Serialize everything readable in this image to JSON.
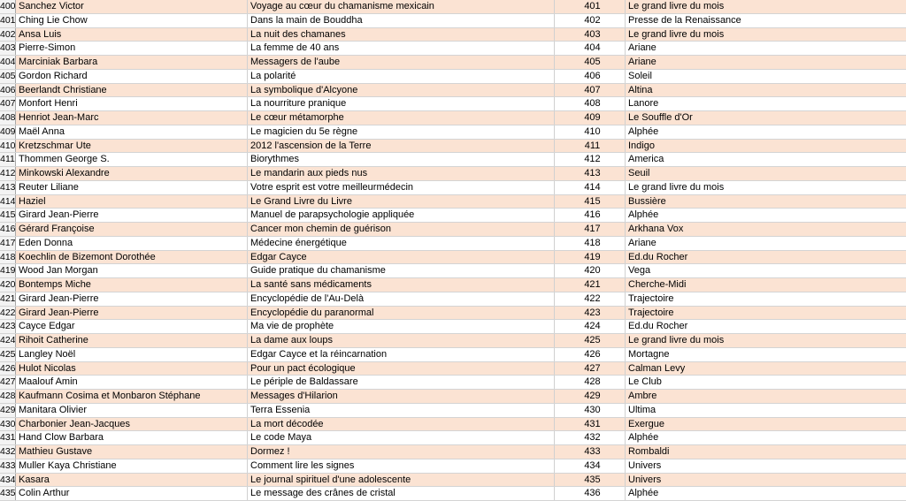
{
  "table": {
    "rows": [
      [
        400,
        "Sanchez Victor",
        "Voyage au cœur du chamanisme mexicain",
        401,
        "Le grand livre du mois"
      ],
      [
        401,
        "Ching Lie Chow",
        "Dans la main de Bouddha",
        402,
        "Presse de la Renaissance"
      ],
      [
        402,
        "Ansa Luis",
        "La nuit des chamanes",
        403,
        "Le grand livre du mois"
      ],
      [
        403,
        "Pierre-Simon",
        "La femme de 40 ans",
        404,
        "Ariane"
      ],
      [
        404,
        "Marciniak Barbara",
        "Messagers de l'aube",
        405,
        "Ariane"
      ],
      [
        405,
        "Gordon Richard",
        "La polarité",
        406,
        "Soleil"
      ],
      [
        406,
        "Beerlandt Christiane",
        "La symbolique d'Alcyone",
        407,
        "Altina"
      ],
      [
        407,
        "Monfort Henri",
        "La nourriture pranique",
        408,
        "Lanore"
      ],
      [
        408,
        "Henriot Jean-Marc",
        "Le cœur métamorphe",
        409,
        "Le Souffle d'Or"
      ],
      [
        409,
        "Maël Anna",
        "Le magicien du 5e règne",
        410,
        "Alphée"
      ],
      [
        410,
        "Kretzschmar Ute",
        "2012 l'ascension de la Terre",
        411,
        "Indigo"
      ],
      [
        411,
        "Thommen George S.",
        "Biorythmes",
        412,
        "America"
      ],
      [
        412,
        "Minkowski Alexandre",
        "Le mandarin aux pieds nus",
        413,
        "Seuil"
      ],
      [
        413,
        "Reuter Liliane",
        "Votre esprit est votre meilleurmédecin",
        414,
        "Le grand livre du mois"
      ],
      [
        414,
        "Haziel",
        "Le Grand Livre du Livre",
        415,
        "Bussière"
      ],
      [
        415,
        "Girard Jean-Pierre",
        "Manuel de parapsychologie appliquée",
        416,
        "Alphée"
      ],
      [
        416,
        "Gérard Françoise",
        "Cancer mon chemin de guérison",
        417,
        "Arkhana Vox"
      ],
      [
        417,
        "Eden Donna",
        "Médecine énergétique",
        418,
        "Ariane"
      ],
      [
        418,
        "Koechlin de Bizemont Dorothée",
        "Edgar Cayce",
        419,
        "Ed.du Rocher"
      ],
      [
        419,
        "Wood Jan Morgan",
        "Guide pratique du chamanisme",
        420,
        "Vega"
      ],
      [
        420,
        "Bontemps Miche",
        "La santé sans médicaments",
        421,
        "Cherche-Midi"
      ],
      [
        421,
        "Girard Jean-Pierre",
        "Encyclopédie de l'Au-Delà",
        422,
        "Trajectoire"
      ],
      [
        422,
        "Girard Jean-Pierre",
        "Encyclopédie du paranormal",
        423,
        "Trajectoire"
      ],
      [
        423,
        "Cayce Edgar",
        "Ma vie de prophète",
        424,
        "Ed.du Rocher"
      ],
      [
        424,
        "Rihoit Catherine",
        "La dame aux loups",
        425,
        "Le grand livre du mois"
      ],
      [
        425,
        "Langley Noël",
        "Edgar Cayce et la réincarnation",
        426,
        "Mortagne"
      ],
      [
        426,
        "Hulot Nicolas",
        "Pour un pact écologique",
        427,
        "Calman Levy"
      ],
      [
        427,
        "Maalouf Amin",
        "Le périple de Baldassare",
        428,
        "Le Club"
      ],
      [
        428,
        "Kaufmann Cosima et Monbaron Stéphane",
        "Messages d'Hilarion",
        429,
        "Ambre"
      ],
      [
        429,
        "Manitara Olivier",
        "Terra Essenia",
        430,
        "Ultima"
      ],
      [
        430,
        "Charbonier Jean-Jacques",
        "La mort décodée",
        431,
        "Exergue"
      ],
      [
        431,
        "Hand Clow Barbara",
        "Le code Maya",
        432,
        "Alphée"
      ],
      [
        432,
        "Mathieu Gustave",
        "Dormez !",
        433,
        "Rombaldi"
      ],
      [
        433,
        "Muller Kaya Christiane",
        "Comment lire les signes",
        434,
        "Univers"
      ],
      [
        434,
        "Kasara",
        "Le journal spirituel d'une adolescente",
        435,
        "Univers"
      ],
      [
        435,
        "Colin Arthur",
        "Le message des crânes de cristal",
        436,
        "Alphée"
      ]
    ]
  }
}
